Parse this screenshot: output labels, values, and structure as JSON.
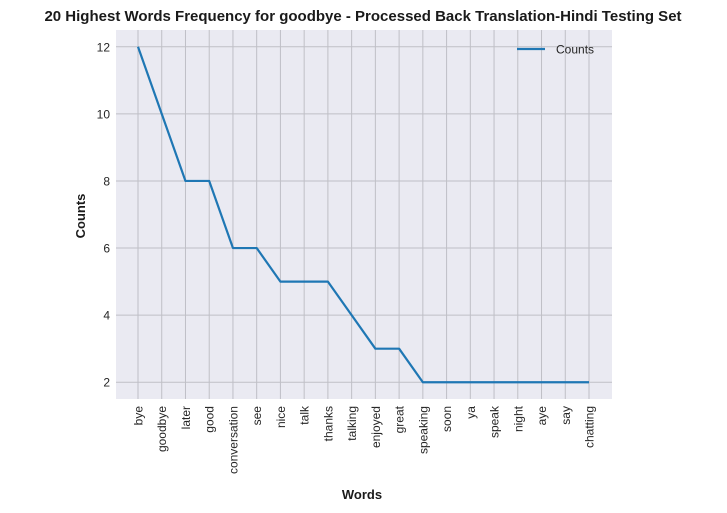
{
  "chart_data": {
    "type": "line",
    "title": "20 Highest Words Frequency for goodbye - Processed Back Translation-Hindi Testing Set",
    "xlabel": "Words",
    "ylabel": "Counts",
    "categories": [
      "bye",
      "goodbye",
      "later",
      "good",
      "conversation",
      "see",
      "nice",
      "talk",
      "thanks",
      "talking",
      "enjoyed",
      "great",
      "speaking",
      "soon",
      "ya",
      "speak",
      "night",
      "aye",
      "say",
      "chatting"
    ],
    "series": [
      {
        "name": "Counts",
        "values": [
          12,
          10,
          8,
          8,
          6,
          6,
          5,
          5,
          5,
          4,
          3,
          3,
          2,
          2,
          2,
          2,
          2,
          2,
          2,
          2
        ],
        "color": "#1f77b4"
      }
    ],
    "ylim": [
      1.5,
      12.5
    ],
    "yticks": [
      2,
      4,
      6,
      8,
      10,
      12
    ],
    "grid": true,
    "legend": "top-right",
    "plot_bg": "#eaeaf2",
    "grid_color": "#bfbfc6"
  }
}
